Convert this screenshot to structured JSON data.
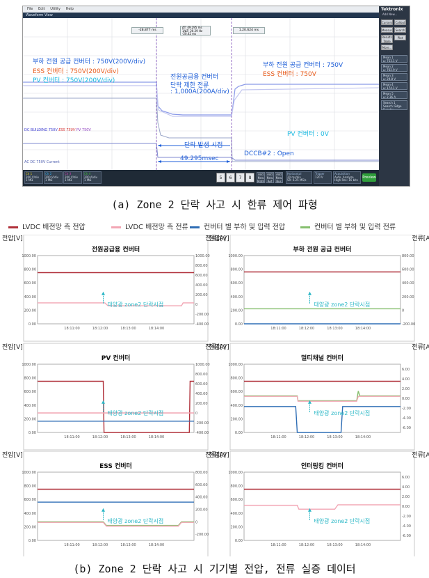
{
  "scope": {
    "menu": [
      "File",
      "Edit",
      "Utility",
      "Help"
    ],
    "window_title": "Waveform View",
    "brand": "Tektronix",
    "brand_sub": "Add New...",
    "cursor_readouts": [
      "-28.877 ms",
      "ΔT: 49.295 ms",
      "1/ΔT: 20.29 Hz",
      "-20.42 ms",
      "1.20.624 ms"
    ],
    "right_buttons": [
      "Cursors",
      "Callout",
      "Measure",
      "Search",
      "Results Table",
      "Plot",
      "More..."
    ],
    "meas": [
      {
        "label": "Mean 1",
        "value": "μ: 753.1 V"
      },
      {
        "label": "Mean 2",
        "value": "μ: 762.9 V"
      },
      {
        "label": "Mean 3",
        "value": "μ: 29.8 V"
      },
      {
        "label": "Mean 4",
        "value": "μ: 174.1 V"
      },
      {
        "label": "Mean 5",
        "value": "μ: 2.36 A"
      },
      {
        "label": "Search 1",
        "value": "Search: Edge Events: --"
      }
    ],
    "channels": [
      {
        "name": "Ch 1",
        "l1": "200 V/div",
        "l2": "1 MΩ",
        "l3": "1 MHz",
        "color": "#e8d020"
      },
      {
        "name": "Ch 2",
        "l1": "200 V/div",
        "l2": "1 MΩ",
        "l3": "1 MHz",
        "color": "#32a8e6"
      },
      {
        "name": "Ch 3",
        "l1": "200 V/div",
        "l2": "1 MΩ",
        "l3": "1 MHz",
        "color": "#d43fb8"
      },
      {
        "name": "Ch 4",
        "l1": "200 A/div",
        "l2": "1 MΩ",
        "l3": "1 MHz",
        "color": "#3dc03d"
      }
    ],
    "num_buttons": [
      "5",
      "6",
      "7",
      "8"
    ],
    "small_buttons": [
      "Add New Math",
      "Add New Ref",
      "Add New Bus"
    ],
    "horizontal": {
      "title": "Horizontal",
      "l1": "20 ms/div",
      "l2": "SR: 6.25 MS/s",
      "l3": "RL: 1.25 Mpts"
    },
    "trigger": {
      "title": "Trigger",
      "l1": "120 V"
    },
    "acquisition": {
      "title": "Acquisition",
      "l1": "Auto, Analyze",
      "l2": "High Res: 16 bits",
      "l3": "7 Acqs"
    },
    "preview": "Preview",
    "annotations": {
      "load_title": "부하 전원 공급 컨버터 : 750V(200V/div)",
      "ess_title": "ESS 컨버터 : 750V(200V/div)",
      "pv_title": "PV 컨버터 : 750V(200V/div)",
      "limit_1": "전원공급용 컨버터",
      "limit_2": "단락 제한 전류",
      "limit_3": ": 1,000A(200A/div)",
      "right_load": "부하 전원 공급 컨버터 : 750V",
      "right_ess": "ESS 컨버터 : 750V",
      "pv_0": "PV 컨버터 : 0V",
      "fault_time": "단락 발생 시점",
      "dt": "49.295msec",
      "dccb": "DCCB#2 : Open",
      "dc_building": "DC BUILDING 750V",
      "dc_ess": "ESS 750V",
      "dc_pv": "PV 750V",
      "ac_dc": "AC DC 750V Current"
    },
    "ann_colors": {
      "blue": "#1f5fd8",
      "orange": "#e85a1a",
      "cyan": "#19b8e0"
    }
  },
  "caption_a": "(a) Zone 2 단락 사고 시 한류 제어 파형",
  "caption_b": "(b) Zone 2 단락 사고 시 기기별 전압, 전류 실증 데이터",
  "legend": [
    {
      "label": "LVDC 배전망 측 전압",
      "color": "#b0303a"
    },
    {
      "label": "LVDC 배전망 측 전류",
      "color": "#f2a6b4"
    },
    {
      "label": "컨버터 별 부하 및 입력 전압",
      "color": "#2f6eb5"
    },
    {
      "label": "컨버터 별 부하 및 입력 전류",
      "color": "#86bf6e"
    }
  ],
  "chart_data": [
    {
      "type": "line",
      "title": "전원공급용 컨버터",
      "ylabel_left": "전압[V]",
      "ylabel_right": "전류[A]",
      "left_ticks": [
        "1000.00",
        "800.00",
        "600.00",
        "400.00",
        "200.00",
        "0.00"
      ],
      "ylim_left": [
        0,
        1000
      ],
      "right_ticks": [
        "1000.00",
        "800.00",
        "600.00",
        "400.00",
        "200.00",
        "0",
        "-200.00",
        "-400.00"
      ],
      "ylim_right": [
        -400,
        1000
      ],
      "x_ticks": [
        "18:11:00",
        "18:12:00",
        "18:13:00",
        "18:14:00"
      ],
      "annotation": "태양광 zone2 단락시점",
      "series": [
        {
          "color": "#b0303a",
          "axis": "left",
          "points": [
            [
              0,
              750
            ],
            [
              100,
              750
            ]
          ]
        },
        {
          "color": "#f2a6b4",
          "axis": "right",
          "points": [
            [
              0,
              30
            ],
            [
              43,
              30
            ],
            [
              45,
              -30
            ],
            [
              92,
              -30
            ],
            [
              93,
              30
            ],
            [
              100,
              30
            ]
          ]
        }
      ]
    },
    {
      "type": "line",
      "title": "부하 전원 공급 컨버터",
      "ylabel_left": "전압[V]",
      "ylabel_right": "전류[A]",
      "left_ticks": [
        "1000.00",
        "800.00",
        "600.00",
        "400.00",
        "200.00",
        "0.00"
      ],
      "ylim_left": [
        0,
        1000
      ],
      "right_ticks": [
        "800.00",
        "600.00",
        "400.00",
        "200.00",
        "0",
        "-200.00"
      ],
      "ylim_right": [
        -200,
        800
      ],
      "x_ticks": [
        "18:11:00",
        "18:12:00",
        "18:13:00",
        "18:14:00"
      ],
      "annotation": "태양광 zone2 단락시점",
      "series": [
        {
          "color": "#b0303a",
          "axis": "left",
          "points": [
            [
              0,
              760
            ],
            [
              100,
              760
            ]
          ]
        },
        {
          "color": "#86bf6e",
          "axis": "right",
          "points": [
            [
              0,
              20
            ],
            [
              100,
              20
            ]
          ]
        },
        {
          "color": "#2f6eb5",
          "axis": "left",
          "points": [
            [
              0,
              0
            ],
            [
              100,
              0
            ]
          ]
        }
      ]
    },
    {
      "type": "line",
      "title": "PV 컨버터",
      "ylabel_left": "전압[V]",
      "ylabel_right": "전류[A]",
      "left_ticks": [
        "1000.00",
        "800.00",
        "600.00",
        "400.00",
        "200.00",
        "0.00"
      ],
      "ylim_left": [
        0,
        1000
      ],
      "right_ticks": [
        "1000.00",
        "800.00",
        "600.00",
        "400.00",
        "200.00",
        "0",
        "-200.00",
        "-400.00"
      ],
      "ylim_right": [
        -400,
        1000
      ],
      "x_ticks": [
        "18:11:00",
        "18:12:00",
        "18:13:00",
        "18:14:00"
      ],
      "annotation": "태양광 zone2 단락시점",
      "series": [
        {
          "color": "#b0303a",
          "axis": "left",
          "points": [
            [
              0,
              750
            ],
            [
              42,
              750
            ],
            [
              42.5,
              0
            ],
            [
              97,
              0
            ],
            [
              97.5,
              750
            ],
            [
              100,
              750
            ]
          ]
        },
        {
          "color": "#2f6eb5",
          "axis": "left",
          "points": [
            [
              0,
              165
            ],
            [
              100,
              165
            ]
          ]
        },
        {
          "color": "#f2a6b4",
          "axis": "right",
          "points": [
            [
              0,
              0
            ],
            [
              100,
              0
            ]
          ]
        }
      ]
    },
    {
      "type": "line",
      "title": "멀티채널 컨버터",
      "ylabel_left": "전압[V]",
      "ylabel_right": "전류[A]",
      "left_ticks": [
        "1000.00",
        "800.00",
        "600.00",
        "400.00",
        "200.00",
        "0.00"
      ],
      "ylim_left": [
        0,
        1000
      ],
      "right_ticks": [
        "6.00",
        "4.00",
        "2.00",
        "0.00",
        "-2.00",
        "-4.00",
        "-6.00"
      ],
      "ylim_right": [
        -7,
        7
      ],
      "x_ticks": [
        "18:11:00",
        "18:12:00",
        "18:13:00",
        "18:14:00"
      ],
      "annotation": "태양광 zone2 단락시점",
      "series": [
        {
          "color": "#b0303a",
          "axis": "left",
          "points": [
            [
              0,
              750
            ],
            [
              100,
              750
            ]
          ]
        },
        {
          "color": "#86bf6e",
          "axis": "right",
          "points": [
            [
              0,
              0.5
            ],
            [
              34,
              0.5
            ],
            [
              34.5,
              -0.5
            ],
            [
              72,
              -0.5
            ],
            [
              73,
              1.5
            ],
            [
              74,
              0.5
            ],
            [
              100,
              0.5
            ]
          ]
        },
        {
          "color": "#f2a6b4",
          "axis": "right",
          "points": [
            [
              0,
              0.4
            ],
            [
              34,
              0.4
            ],
            [
              34.5,
              -0.6
            ],
            [
              72,
              -0.6
            ],
            [
              73,
              0.4
            ],
            [
              100,
              0.4
            ]
          ]
        },
        {
          "color": "#2f6eb5",
          "axis": "left",
          "points": [
            [
              0,
              380
            ],
            [
              33,
              380
            ],
            [
              34,
              0
            ],
            [
              62,
              0
            ],
            [
              63,
              380
            ],
            [
              100,
              380
            ]
          ]
        }
      ]
    },
    {
      "type": "line",
      "title": "ESS 컨버터",
      "ylabel_left": "전압[V]",
      "ylabel_right": "전류[A]",
      "left_ticks": [
        "1000.00",
        "800.00",
        "600.00",
        "400.00",
        "200.00",
        "0.00"
      ],
      "ylim_left": [
        0,
        1000
      ],
      "right_ticks": [
        "800.00",
        "600.00",
        "400.00",
        "200.00",
        "0",
        "-200.00"
      ],
      "ylim_right": [
        -300,
        800
      ],
      "x_ticks": [
        "18:11:00",
        "18:12:00",
        "18:13:00",
        "18:14:00"
      ],
      "annotation": "태양광 zone2 단락시점",
      "series": [
        {
          "color": "#b0303a",
          "axis": "left",
          "points": [
            [
              0,
              750
            ],
            [
              100,
              750
            ]
          ]
        },
        {
          "color": "#2f6eb5",
          "axis": "left",
          "points": [
            [
              0,
              560
            ],
            [
              100,
              560
            ]
          ]
        },
        {
          "color": "#86bf6e",
          "axis": "right",
          "points": [
            [
              0,
              0
            ],
            [
              42,
              0
            ],
            [
              44,
              -60
            ],
            [
              90,
              -60
            ],
            [
              92,
              0
            ],
            [
              100,
              0
            ]
          ]
        },
        {
          "color": "#f2a6b4",
          "axis": "right",
          "points": [
            [
              0,
              -10
            ],
            [
              42,
              -10
            ],
            [
              44,
              -70
            ],
            [
              90,
              -70
            ],
            [
              92,
              -10
            ],
            [
              100,
              -10
            ]
          ]
        }
      ]
    },
    {
      "type": "line",
      "title": "인터링킹 컨버터",
      "ylabel_left": "전압[V]",
      "ylabel_right": "전류[A]",
      "left_ticks": [
        "1000.00",
        "800.00",
        "600.00",
        "400.00",
        "200.00",
        "0.00"
      ],
      "ylim_left": [
        0,
        1000
      ],
      "right_ticks": [
        "6.00",
        "4.00",
        "2.00",
        "0.00",
        "-2.00",
        "-4.00",
        "-6.00"
      ],
      "ylim_right": [
        -7,
        7
      ],
      "x_ticks": [
        "18:11:00",
        "18:12:00",
        "18:13:00",
        "18:14:00"
      ],
      "annotation": "태양광 zone2 단락시점",
      "series": [
        {
          "color": "#b0303a",
          "axis": "left",
          "points": [
            [
              0,
              750
            ],
            [
              100,
              750
            ]
          ]
        },
        {
          "color": "#f2a6b4",
          "axis": "right",
          "points": [
            [
              0,
              0.2
            ],
            [
              34,
              0.2
            ],
            [
              35,
              -0.6
            ],
            [
              58,
              -0.6
            ],
            [
              60,
              0.3
            ],
            [
              100,
              0.3
            ]
          ]
        }
      ]
    }
  ]
}
